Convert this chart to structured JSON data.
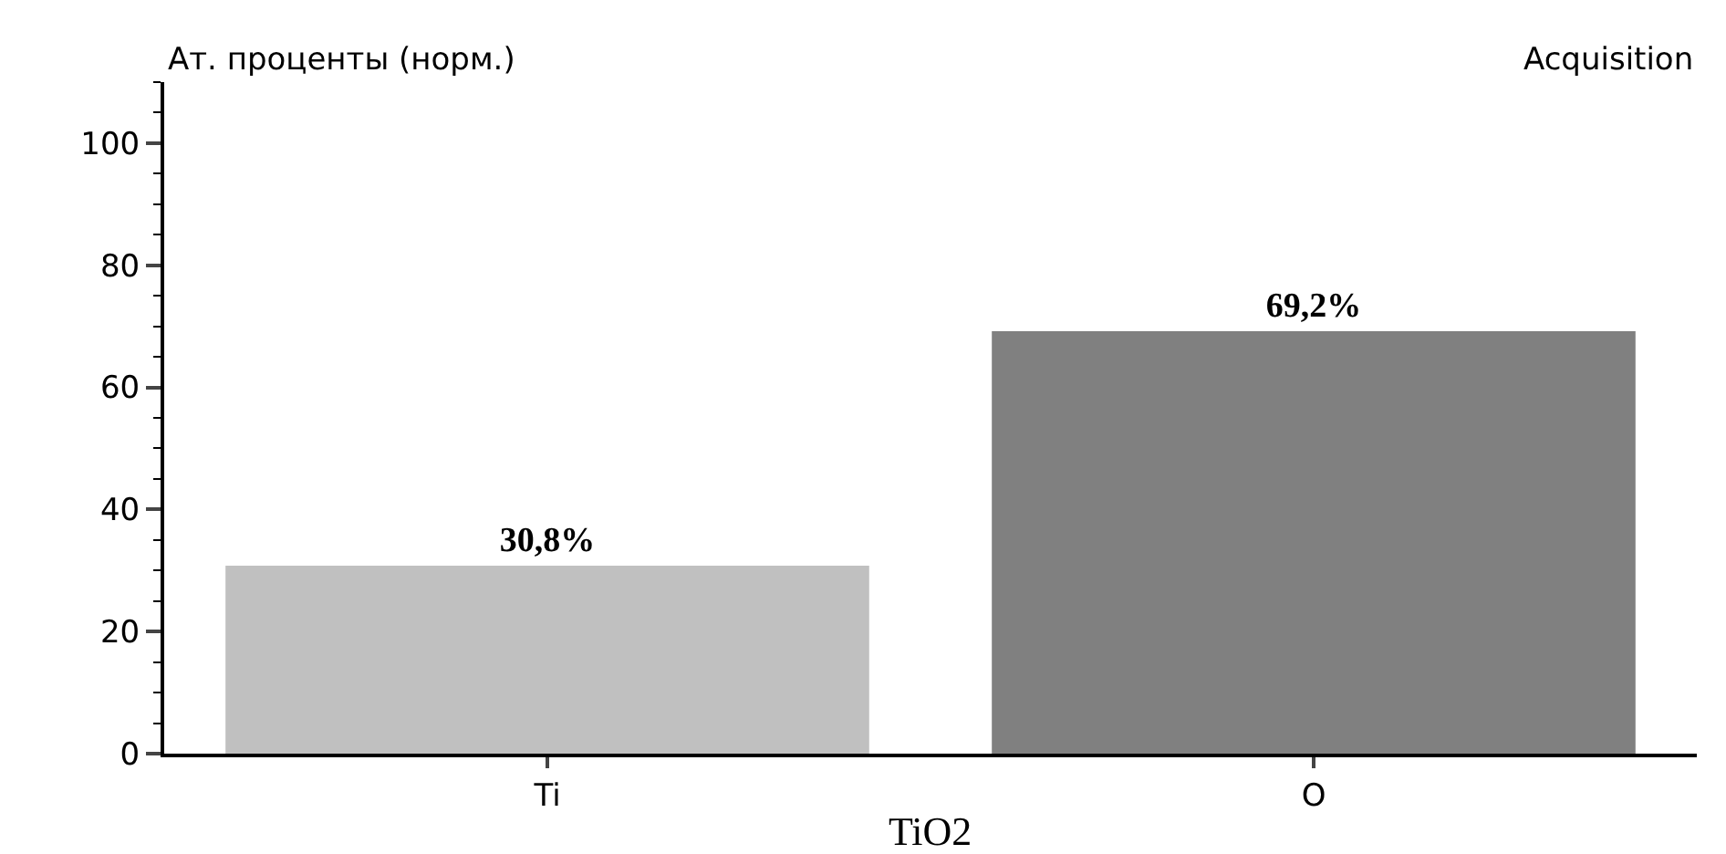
{
  "chart_data": {
    "type": "bar",
    "ylabel": "Ат. проценты (норм.)",
    "xlabel": "TiO2",
    "annotations": [
      "Acquisition"
    ],
    "categories": [
      "Ti",
      "O"
    ],
    "values": [
      30.8,
      69.2
    ],
    "colors": [
      "#c0c0c0",
      "#808080"
    ],
    "value_labels": [
      "30,8%",
      "69,2%"
    ],
    "ylim": [
      0,
      110
    ],
    "yticks": [
      0,
      20,
      40,
      60,
      80,
      100
    ]
  }
}
